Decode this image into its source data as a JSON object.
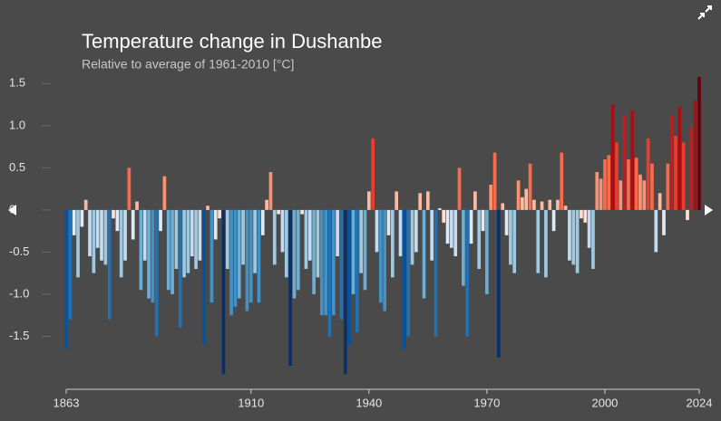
{
  "chart_data": {
    "type": "bar",
    "title": "Temperature change in Dushanbe",
    "subtitle": "Relative to average of 1961-2010  [°C]",
    "x": [
      1863,
      1864,
      1865,
      1866,
      1867,
      1868,
      1869,
      1870,
      1871,
      1872,
      1873,
      1874,
      1875,
      1876,
      1877,
      1878,
      1879,
      1880,
      1881,
      1882,
      1883,
      1884,
      1885,
      1886,
      1887,
      1888,
      1889,
      1890,
      1891,
      1892,
      1893,
      1894,
      1895,
      1896,
      1897,
      1898,
      1899,
      1900,
      1901,
      1902,
      1903,
      1904,
      1905,
      1906,
      1907,
      1908,
      1909,
      1910,
      1911,
      1912,
      1913,
      1914,
      1915,
      1916,
      1917,
      1918,
      1919,
      1920,
      1921,
      1922,
      1923,
      1924,
      1925,
      1926,
      1927,
      1928,
      1929,
      1930,
      1931,
      1932,
      1933,
      1934,
      1935,
      1936,
      1937,
      1938,
      1939,
      1940,
      1941,
      1942,
      1943,
      1944,
      1945,
      1946,
      1947,
      1948,
      1949,
      1950,
      1951,
      1952,
      1953,
      1954,
      1955,
      1956,
      1957,
      1958,
      1959,
      1960,
      1961,
      1962,
      1963,
      1964,
      1965,
      1966,
      1967,
      1968,
      1969,
      1970,
      1971,
      1972,
      1973,
      1974,
      1975,
      1976,
      1977,
      1978,
      1979,
      1980,
      1981,
      1982,
      1983,
      1984,
      1985,
      1986,
      1987,
      1988,
      1989,
      1990,
      1991,
      1992,
      1993,
      1994,
      1995,
      1996,
      1997,
      1998,
      1999,
      2000,
      2001,
      2002,
      2003,
      2004,
      2005,
      2006,
      2007,
      2008,
      2009,
      2010,
      2011,
      2012,
      2013,
      2014,
      2015,
      2016,
      2017,
      2018,
      2019,
      2020,
      2021,
      2022,
      2023,
      2024
    ],
    "values": [
      -1.65,
      -1.3,
      -0.3,
      -0.8,
      -0.2,
      0.12,
      -0.55,
      -0.75,
      -0.45,
      -0.6,
      -0.65,
      -1.3,
      -0.1,
      -0.25,
      -0.8,
      -0.6,
      0.5,
      -0.35,
      0.1,
      -0.95,
      -0.6,
      -1.05,
      -1.1,
      -1.5,
      -0.25,
      0.4,
      -0.95,
      -1.0,
      -0.7,
      -1.4,
      -0.8,
      -0.75,
      -0.55,
      -0.7,
      -0.6,
      -1.6,
      0.05,
      -1.1,
      -0.35,
      -0.1,
      -1.95,
      -0.7,
      -1.25,
      -1.15,
      -1.05,
      -0.65,
      -1.2,
      -1.1,
      -0.75,
      -1.1,
      -0.3,
      0.12,
      0.45,
      -0.65,
      -0.05,
      -0.5,
      -0.8,
      -1.85,
      -1.05,
      -0.95,
      -0.05,
      -0.7,
      -0.6,
      -1.0,
      -0.8,
      -1.25,
      -1.25,
      -1.5,
      -1.25,
      -0.55,
      -1.3,
      -1.95,
      -1.6,
      -1.0,
      -1.45,
      -0.75,
      -0.95,
      0.22,
      0.85,
      -0.5,
      -1.1,
      -1.2,
      -0.3,
      -0.8,
      0.22,
      -0.55,
      -1.65,
      -1.5,
      -0.65,
      -0.5,
      0.2,
      -1.05,
      0.22,
      -0.6,
      -1.5,
      0.02,
      -0.15,
      -0.4,
      -0.45,
      -0.55,
      0.5,
      -0.9,
      -1.5,
      -0.4,
      0.22,
      -0.7,
      -0.25,
      -1.0,
      0.3,
      0.68,
      -1.75,
      0.08,
      -0.3,
      -0.65,
      -0.75,
      0.35,
      0.15,
      0.25,
      0.55,
      0.12,
      -0.75,
      0.1,
      -0.8,
      0.12,
      -0.25,
      0.12,
      0.68,
      0.05,
      -0.6,
      -0.65,
      -0.75,
      -0.1,
      -0.15,
      -0.45,
      -0.7,
      0.45,
      0.37,
      0.6,
      0.65,
      1.25,
      0.8,
      0.35,
      1.12,
      0.6,
      1.18,
      0.62,
      0.42,
      0.35,
      0.85,
      0.55,
      -0.5,
      0.2,
      -0.3,
      0.55,
      1.12,
      0.88,
      1.22,
      0.8,
      -0.12,
      0.98,
      1.3,
      1.58
    ],
    "colors": [
      "#08306b",
      "#08519c",
      "#2171b5",
      "#4292c6",
      "#6baed6",
      "#9ecae1",
      "#c6dbef",
      "#deebf7",
      "#fee0d2",
      "#fcbba1",
      "#fc9272",
      "#fb6a4a",
      "#ef3b2c",
      "#cb181d",
      "#a50f15",
      "#67000d"
    ],
    "xlim": [
      1863,
      2024
    ],
    "xticks": [
      1863,
      1910,
      1940,
      1970,
      2000,
      2024
    ],
    "ylim": [
      -2,
      1.6
    ],
    "yticks": [
      1.5,
      {
        "value": 1,
        "label": "1.0"
      },
      0.5,
      0,
      -0.5,
      {
        "value": -1,
        "label": "-1.0"
      },
      -1.5
    ]
  }
}
